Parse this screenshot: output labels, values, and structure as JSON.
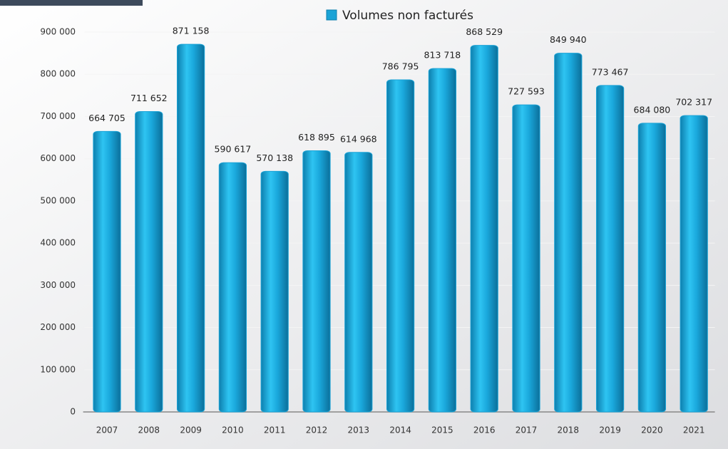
{
  "chart_data": {
    "type": "bar",
    "legend": "Volumes non facturés",
    "categories": [
      "2007",
      "2008",
      "2009",
      "2010",
      "2011",
      "2012",
      "2013",
      "2014",
      "2015",
      "2016",
      "2017",
      "2018",
      "2019",
      "2020",
      "2021"
    ],
    "values": [
      664705,
      711652,
      871158,
      590617,
      570138,
      618895,
      614968,
      786795,
      813718,
      868529,
      727593,
      849940,
      773467,
      684080,
      702317
    ],
    "value_labels": [
      "664 705",
      "711 652",
      "871 158",
      "590 617",
      "570 138",
      "618 895",
      "614 968",
      "786 795",
      "813 718",
      "868 529",
      "727 593",
      "849 940",
      "773 467",
      "684 080",
      "702 317"
    ],
    "color": "#1ba3d6",
    "ylim": [
      0,
      900000
    ],
    "yticks": [
      0,
      {
        "value": 100000,
        "label": "100 000"
      },
      {
        "value": 200000,
        "label": "200 000"
      },
      {
        "value": 300000,
        "label": "300 000"
      },
      {
        "value": 400000,
        "label": "400 000"
      },
      {
        "value": 500000,
        "label": "500 000"
      },
      {
        "value": 600000,
        "label": "600 000"
      },
      {
        "value": 700000,
        "label": "700 000"
      },
      {
        "value": 800000,
        "label": "800 000"
      },
      {
        "value": 900000,
        "label": "900 000"
      }
    ],
    "grid": true
  }
}
